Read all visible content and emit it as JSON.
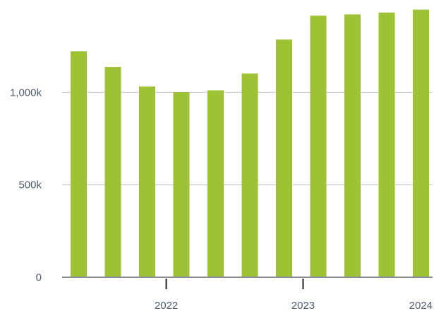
{
  "chart_data": {
    "type": "bar",
    "title": "",
    "xlabel": "",
    "ylabel": "",
    "grid": true,
    "legend": "none",
    "bar_color": "#9dc233",
    "ylim": [
      0,
      1500000
    ],
    "y_ticks": [
      {
        "value": 0,
        "label": "0"
      },
      {
        "value": 500000,
        "label": "500k"
      },
      {
        "value": 1000000,
        "label": "1,000k"
      }
    ],
    "x_ticks": [
      {
        "date": "2022-01-01",
        "label": "2022"
      },
      {
        "date": "2023-01-01",
        "label": "2023"
      },
      {
        "date": "2024-01-01",
        "label": "2024"
      }
    ],
    "categories": [
      "2021-04-01",
      "2021-07-01",
      "2021-10-01",
      "2022-01-01",
      "2022-04-01",
      "2022-07-01",
      "2022-10-01",
      "2023-01-01",
      "2023-04-01",
      "2023-07-01",
      "2023-10-01"
    ],
    "values": [
      1222000,
      1138000,
      1032000,
      1001000,
      1011000,
      1102000,
      1286000,
      1415000,
      1422000,
      1432000,
      1448000
    ]
  }
}
